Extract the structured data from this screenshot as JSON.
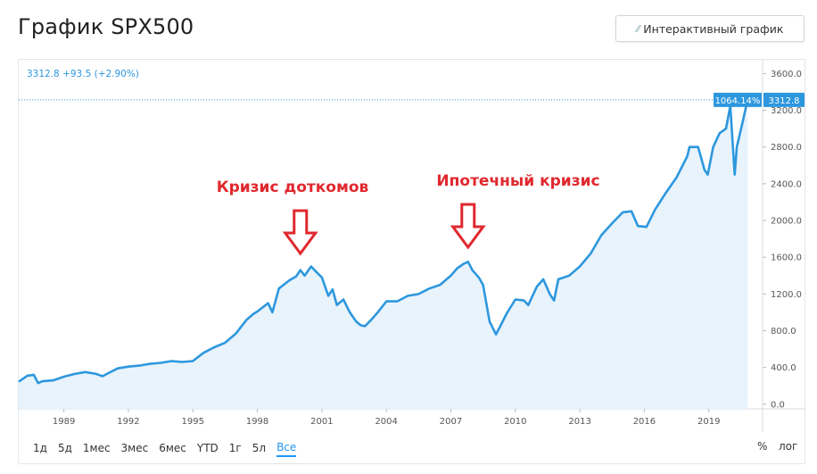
{
  "header": {
    "title": "График SPX500",
    "interactive_button_label": "Интерактивный график",
    "interactive_button_icon": "chart-icon"
  },
  "colors": {
    "line": "#2d97de",
    "area_fill": "#e8f3fc",
    "annotation": "#e0282e",
    "last_price_bg": "#2d97de"
  },
  "chart_data": {
    "type": "area",
    "x_tick_labels": [
      "1989",
      "1992",
      "1995",
      "1998",
      "2001",
      "2004",
      "2007",
      "2010",
      "2013",
      "2016",
      "2019"
    ],
    "y_tick_labels": [
      "3600.0",
      "3200.0",
      "2800.0",
      "2400.0",
      "2000.0",
      "1600.0",
      "1200.0",
      "800.0",
      "400.0",
      "0.0"
    ],
    "ylim": [
      -50,
      3720
    ],
    "xlim": [
      1986.9,
      2021.5
    ],
    "quote_header": "3312.8 +93.5 (+2.90%)",
    "last_price_label": "3312.8",
    "last_percent_label": "1064.14%",
    "last_price": 3312.8,
    "grid": true,
    "series": [
      {
        "x": [
          1986.9,
          1987.3,
          1987.6,
          1987.8,
          1988,
          1988.5,
          1989,
          1989.5,
          1990,
          1990.5,
          1990.8,
          1991,
          1991.5,
          1992,
          1992.5,
          1993,
          1993.5,
          1994,
          1994.5,
          1995,
          1995.5,
          1996,
          1996.5,
          1997,
          1997.5,
          1997.8,
          1998,
          1998.5,
          1998.7,
          1999,
          1999.5,
          1999.8,
          2000,
          2000.2,
          2000.5,
          2000.7,
          2001,
          2001.3,
          2001.5,
          2001.7,
          2002,
          2002.3,
          2002.6,
          2002.8,
          2003,
          2003.3,
          2003.6,
          2004,
          2004.5,
          2005,
          2005.5,
          2006,
          2006.5,
          2007,
          2007.3,
          2007.6,
          2007.8,
          2008,
          2008.3,
          2008.5,
          2008.8,
          2009.1,
          2009.3,
          2009.6,
          2010,
          2010.4,
          2010.6,
          2011,
          2011.3,
          2011.6,
          2011.8,
          2012,
          2012.5,
          2013,
          2013.5,
          2014,
          2014.5,
          2015,
          2015.4,
          2015.7,
          2016.1,
          2016.5,
          2017,
          2017.5,
          2018,
          2018.1,
          2018.5,
          2018.8,
          2018.95,
          2019.2,
          2019.5,
          2019.8,
          2020,
          2020.2,
          2020.3,
          2020.6,
          2020.8
        ],
        "values": [
          245,
          310,
          320,
          230,
          250,
          260,
          300,
          330,
          350,
          330,
          305,
          330,
          390,
          410,
          420,
          440,
          450,
          470,
          460,
          470,
          560,
          620,
          670,
          770,
          920,
          980,
          1010,
          1100,
          1000,
          1260,
          1350,
          1390,
          1460,
          1400,
          1500,
          1450,
          1380,
          1180,
          1250,
          1080,
          1140,
          1000,
          900,
          860,
          850,
          920,
          1000,
          1120,
          1120,
          1180,
          1200,
          1260,
          1300,
          1400,
          1480,
          1530,
          1550,
          1460,
          1380,
          1300,
          900,
          760,
          850,
          990,
          1140,
          1130,
          1080,
          1280,
          1360,
          1200,
          1130,
          1360,
          1400,
          1500,
          1640,
          1840,
          1970,
          2090,
          2100,
          1940,
          1930,
          2120,
          2300,
          2470,
          2700,
          2800,
          2800,
          2550,
          2500,
          2800,
          2950,
          3000,
          3250,
          2500,
          2800,
          3100,
          3312.8
        ]
      }
    ],
    "annotations": [
      {
        "label": "Кризис доткомов",
        "x": 2000.0,
        "type": "arrow-down"
      },
      {
        "label": "Ипотечный кризис",
        "x": 2007.8,
        "type": "arrow-down"
      }
    ]
  },
  "range_buttons": [
    "1д",
    "5д",
    "1мес",
    "3мес",
    "6мес",
    "YTD",
    "1г",
    "5л",
    "Все"
  ],
  "active_range": "Все",
  "scale_buttons": [
    "%",
    "лог"
  ]
}
